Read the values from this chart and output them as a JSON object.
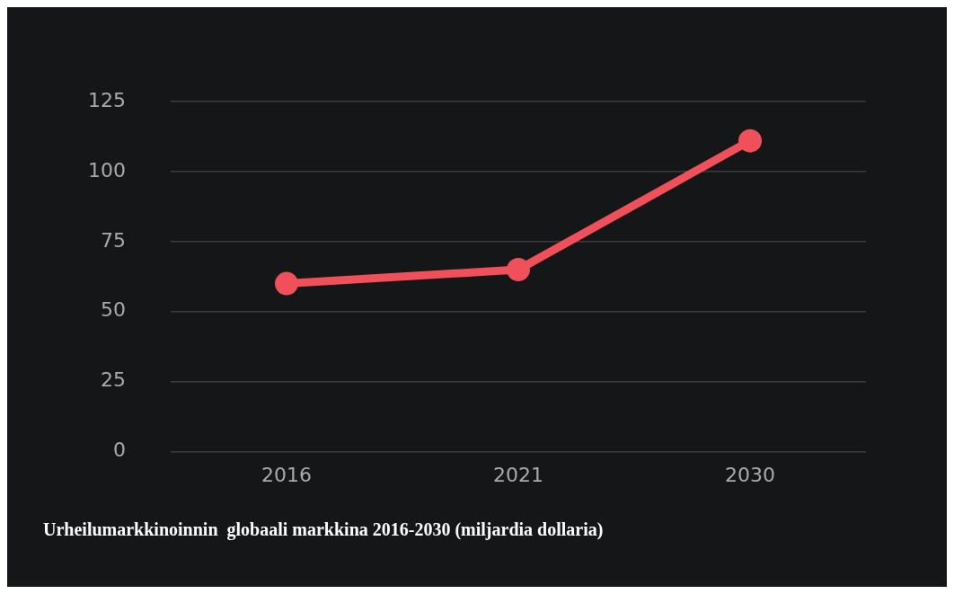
{
  "chart_data": {
    "type": "line",
    "title": "Urheilumarkkinoinnin  globaali markkina 2016-2030 (miljardia dollaria)",
    "categories": [
      "2016",
      "2021",
      "2030"
    ],
    "series": [
      {
        "color": "#f0505a",
        "values": [
          60,
          65,
          111
        ]
      }
    ],
    "ylim": [
      0,
      125
    ],
    "yticks": [
      0,
      25,
      50,
      75,
      100,
      125
    ],
    "grid": "y",
    "legend": false,
    "marker": "circle",
    "line_style": "solid"
  }
}
